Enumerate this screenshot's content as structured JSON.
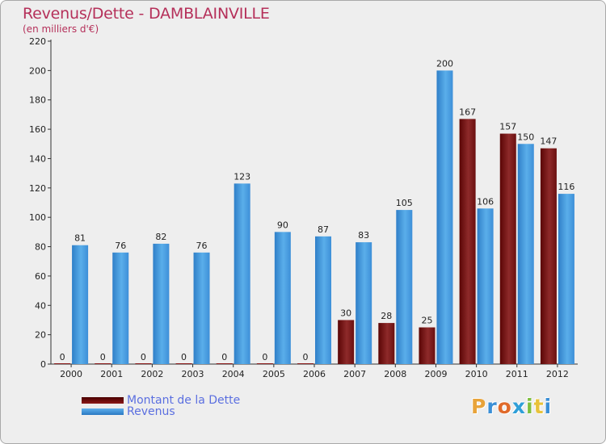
{
  "chart_data": {
    "type": "bar",
    "title": "Revenus/Dette - DAMBLAINVILLE",
    "subtitle": "(en milliers d'€)",
    "categories": [
      "2000",
      "2001",
      "2002",
      "2003",
      "2004",
      "2005",
      "2006",
      "2007",
      "2008",
      "2009",
      "2010",
      "2011",
      "2012"
    ],
    "series": [
      {
        "name": "Montant de la Dette",
        "color": "#8b1a1a",
        "values": [
          0,
          0,
          0,
          0,
          0,
          0,
          0,
          30,
          28,
          25,
          167,
          157,
          147
        ]
      },
      {
        "name": "Revenus",
        "color": "#3a8fd6",
        "values": [
          81,
          76,
          82,
          76,
          123,
          90,
          87,
          83,
          105,
          200,
          106,
          150,
          116
        ]
      }
    ],
    "ylim": [
      0,
      220
    ],
    "yticks": [
      0,
      20,
      40,
      60,
      80,
      100,
      120,
      140,
      160,
      180,
      200,
      220
    ],
    "grid": false,
    "legend_position": "bottom-left"
  },
  "logo": {
    "text": "Proxiti"
  }
}
